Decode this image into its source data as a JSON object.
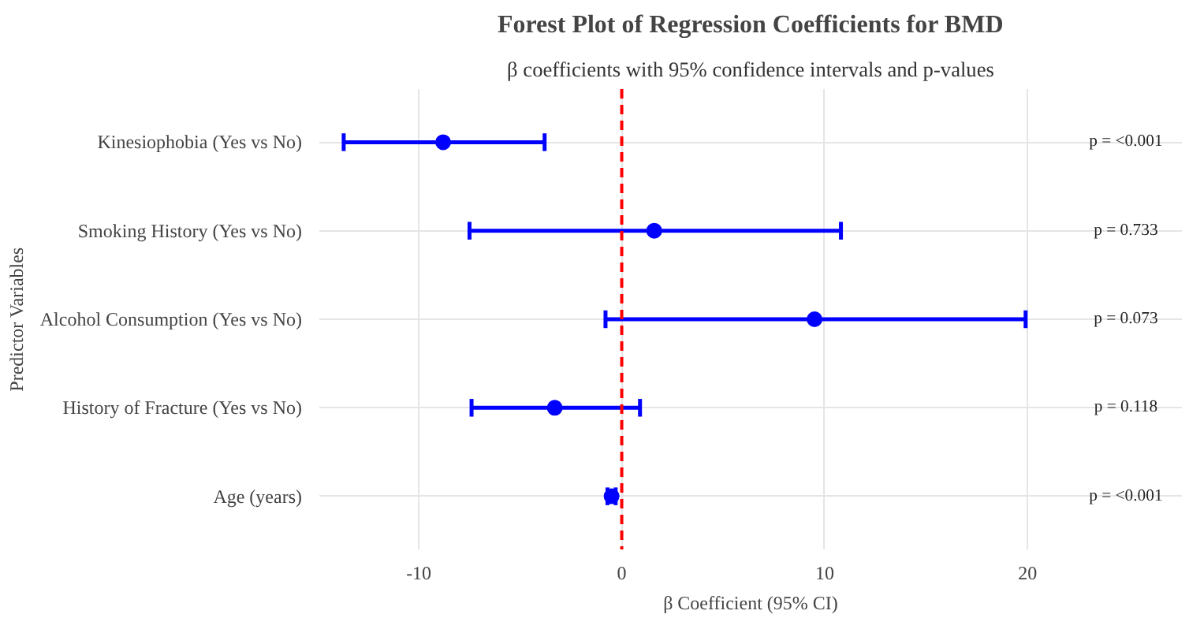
{
  "chart_data": {
    "type": "scatter",
    "orientation": "horizontal",
    "title": "Forest Plot of Regression Coefficients for BMD",
    "subtitle": "β coefficients with 95% confidence intervals and p-values",
    "xlabel": "β Coefficient (95% CI)",
    "ylabel": "Predictor Variables",
    "categories": [
      "Kinesiophobia (Yes vs No)",
      "Smoking History (Yes vs No)",
      "Alcohol Consumption (Yes vs No)",
      "History of Fracture (Yes vs No)",
      "Age (years)"
    ],
    "series": [
      {
        "color": "#0000ff",
        "values": [
          -8.8,
          1.6,
          9.5,
          -3.3,
          -0.5
        ],
        "errors": [
          [
            -13.7,
            -3.8
          ],
          [
            -7.5,
            10.8
          ],
          [
            -0.8,
            19.9
          ],
          [
            -7.4,
            0.9
          ],
          [
            -0.7,
            -0.3
          ]
        ]
      }
    ],
    "xlim": [
      -14.9,
      27.6
    ],
    "xticks": [
      -10,
      0,
      10,
      20
    ],
    "grid": true,
    "marker": "circle",
    "ref_lines": [
      {
        "axis": "x",
        "value": 0,
        "color": "#ff0000",
        "line_style": "dashed"
      }
    ],
    "annotations": [
      "p = <0.001",
      "p = 0.733",
      "p = 0.073",
      "p = 0.118",
      "p = <0.001"
    ]
  }
}
